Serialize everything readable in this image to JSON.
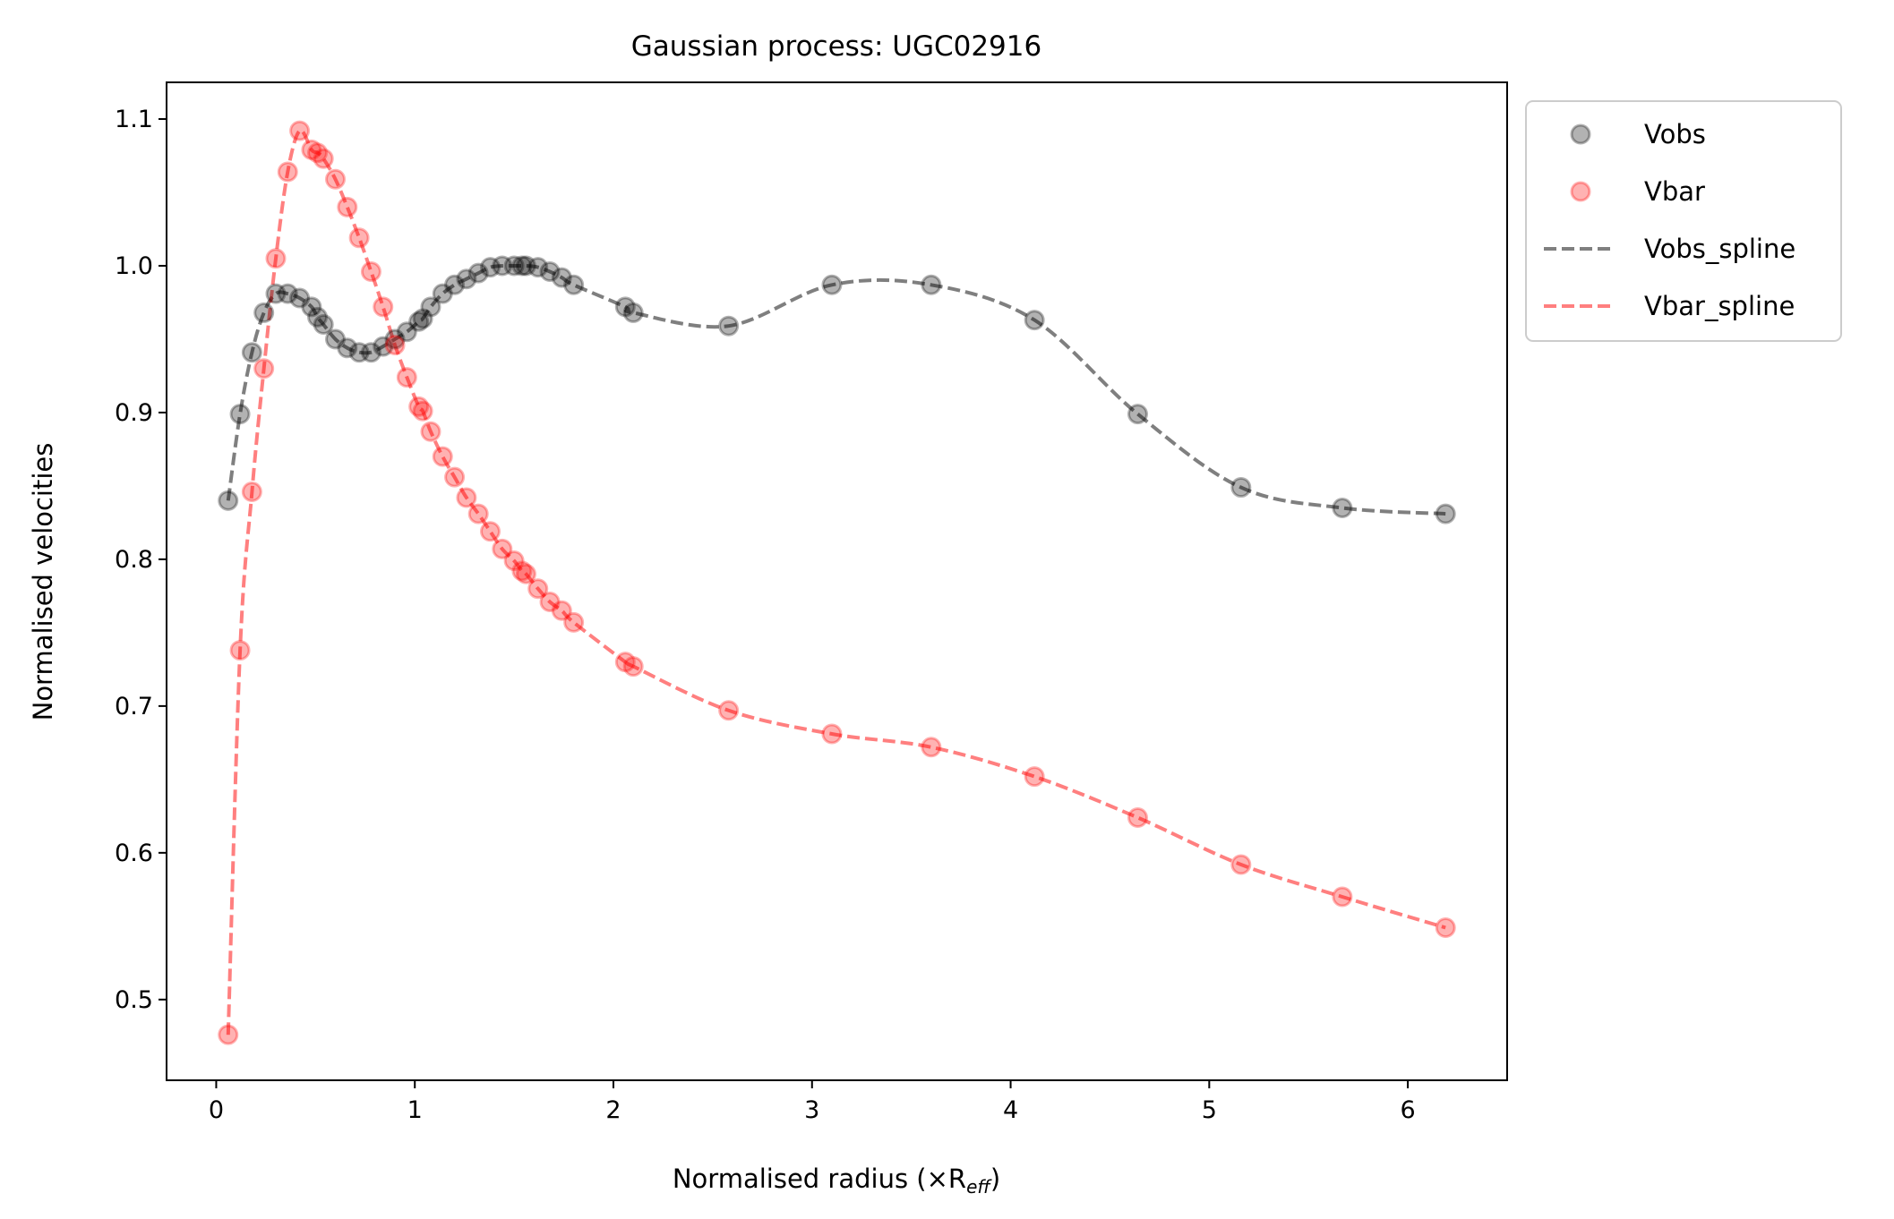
{
  "chart_data": {
    "type": "scatter",
    "title": "Gaussian process: UGC02916",
    "xlabel": "Normalised radius (×R",
    "xlabel_sub": "eff",
    "xlabel_close": ")",
    "ylabel": "Normalised velocities",
    "xlim": [
      -0.25,
      6.5
    ],
    "ylim": [
      0.445,
      1.125
    ],
    "xticks": [
      0,
      1,
      2,
      3,
      4,
      5,
      6
    ],
    "xtick_labels": [
      "0",
      "1",
      "2",
      "3",
      "4",
      "5",
      "6"
    ],
    "yticks": [
      0.5,
      0.6,
      0.7,
      0.8,
      0.9,
      1.0,
      1.1
    ],
    "ytick_labels": [
      "0.5",
      "0.6",
      "0.7",
      "0.8",
      "0.9",
      "1.0",
      "1.1"
    ],
    "grid": false,
    "legend_placement": "outside-top-right",
    "x": [
      0.06,
      0.12,
      0.18,
      0.24,
      0.3,
      0.36,
      0.42,
      0.48,
      0.51,
      0.54,
      0.6,
      0.66,
      0.72,
      0.78,
      0.84,
      0.9,
      0.96,
      1.02,
      1.04,
      1.08,
      1.14,
      1.2,
      1.26,
      1.32,
      1.38,
      1.44,
      1.5,
      1.54,
      1.56,
      1.62,
      1.68,
      1.74,
      1.8,
      2.06,
      2.1,
      2.58,
      3.1,
      3.6,
      4.12,
      4.64,
      5.16,
      5.67,
      6.19
    ],
    "series": [
      {
        "name": "Vobs",
        "color": "#000000",
        "values": [
          0.84,
          0.899,
          0.941,
          0.968,
          0.981,
          0.981,
          0.978,
          0.972,
          0.965,
          0.96,
          0.95,
          0.944,
          0.941,
          0.941,
          0.945,
          0.95,
          0.955,
          0.962,
          0.964,
          0.972,
          0.981,
          0.987,
          0.991,
          0.995,
          0.999,
          1.0,
          1.0,
          1.0,
          1.0,
          0.999,
          0.996,
          0.992,
          0.987,
          0.972,
          0.968,
          0.959,
          0.987,
          0.987,
          0.963,
          0.899,
          0.849,
          0.835,
          0.831
        ]
      },
      {
        "name": "Vbar",
        "color": "#ff0000",
        "values": [
          0.476,
          0.738,
          0.846,
          0.93,
          1.005,
          1.064,
          1.092,
          1.079,
          1.077,
          1.073,
          1.059,
          1.04,
          1.019,
          0.996,
          0.972,
          0.946,
          0.924,
          0.904,
          0.901,
          0.887,
          0.87,
          0.856,
          0.842,
          0.831,
          0.819,
          0.807,
          0.799,
          0.792,
          0.79,
          0.78,
          0.771,
          0.765,
          0.757,
          0.73,
          0.727,
          0.697,
          0.681,
          0.672,
          0.652,
          0.624,
          0.592,
          0.57,
          0.549
        ]
      },
      {
        "name": "Vobs_spline",
        "color": "#000000",
        "line_style": "dashed",
        "of": "Vobs"
      },
      {
        "name": "Vbar_spline",
        "color": "#ff0000",
        "line_style": "dashed",
        "of": "Vbar"
      }
    ]
  }
}
